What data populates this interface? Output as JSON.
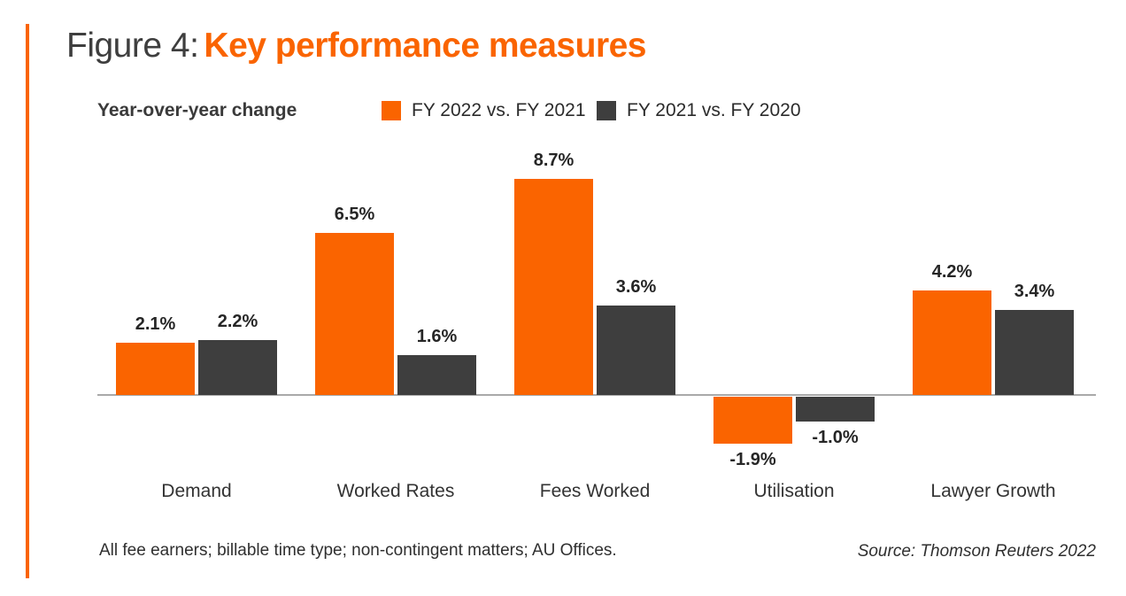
{
  "figure": {
    "label": "Figure 4:",
    "title": "Key performance measures"
  },
  "legend": {
    "axis_label": "Year-over-year change"
  },
  "chart_data": {
    "type": "bar",
    "title": "Figure 4: Key performance measures",
    "subtitle": "Year-over-year change",
    "categories": [
      "Demand",
      "Worked Rates",
      "Fees Worked",
      "Utilisation",
      "Lawyer Growth"
    ],
    "series": [
      {
        "name": "FY 2022 vs. FY 2021",
        "color": "#FA6400",
        "values": [
          2.1,
          6.5,
          8.7,
          -1.9,
          4.2
        ],
        "labels": [
          "2.1%",
          "6.5%",
          "8.7%",
          "-1.9%",
          "4.2%"
        ]
      },
      {
        "name": "FY 2021 vs. FY 2020",
        "color": "#3E3E3E",
        "values": [
          2.2,
          1.6,
          3.6,
          -1.0,
          3.4
        ],
        "labels": [
          "2.2%",
          "1.6%",
          "3.6%",
          "-1.0%",
          "3.4%"
        ]
      }
    ],
    "value_suffix": "%",
    "ylim": [
      -3,
      10
    ],
    "grid": false,
    "legend_position": "top",
    "data_labels": true
  },
  "footer": {
    "note": "All fee earners; billable time type; non-contingent matters; AU Offices.",
    "source": "Source: Thomson Reuters 2022"
  },
  "colors": {
    "accent_orange": "#FA6400",
    "dark_gray": "#3E3E3E",
    "axis_line": "#A9A9A9",
    "title_gray": "#3E3E3E",
    "value_text": "#262626"
  }
}
